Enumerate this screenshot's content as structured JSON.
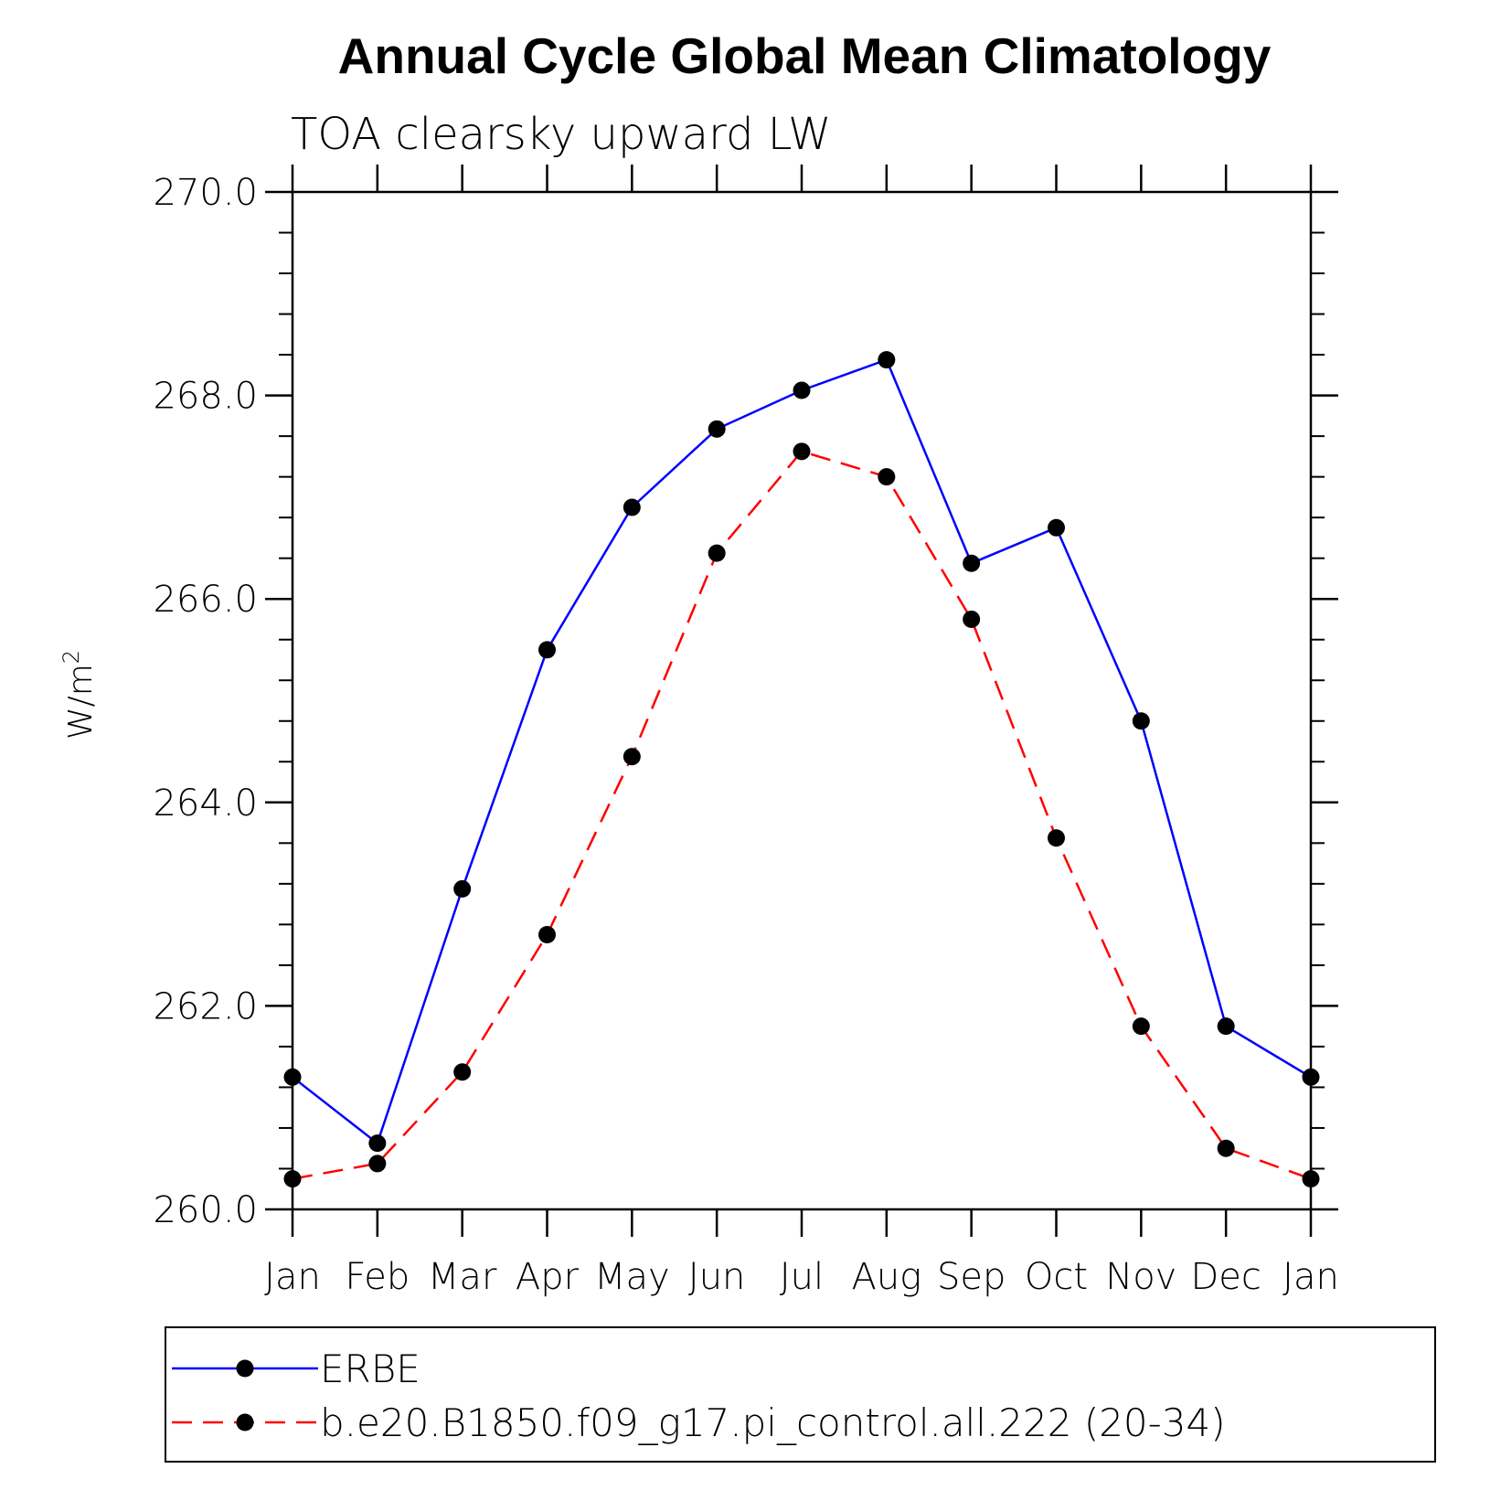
{
  "chart_data": {
    "type": "line",
    "title": "Annual Cycle Global Mean Climatology",
    "subtitle": "TOA clearsky upward LW",
    "xlabel": "",
    "ylabel": "W/m",
    "ylabel_superscript": "2",
    "categories": [
      "Jan",
      "Feb",
      "Mar",
      "Apr",
      "May",
      "Jun",
      "Jul",
      "Aug",
      "Sep",
      "Oct",
      "Nov",
      "Dec",
      "Jan"
    ],
    "ylim": [
      260.0,
      270.0
    ],
    "yticks": [
      "260.0",
      "262.0",
      "264.0",
      "266.0",
      "268.0",
      "270.0"
    ],
    "grid": false,
    "legend_position": "bottom",
    "series": [
      {
        "name": "ERBE",
        "color": "#0000ff",
        "dash": "solid",
        "marker": "filled-circle",
        "values": [
          261.3,
          260.65,
          263.15,
          265.5,
          266.9,
          267.67,
          268.05,
          268.35,
          266.35,
          266.7,
          264.8,
          261.8,
          261.3
        ]
      },
      {
        "name": "b.e20.B1850.f09_g17.pi_control.all.222 (20-34)",
        "color": "#ff0000",
        "dash": "dashed",
        "marker": "filled-circle",
        "values": [
          260.3,
          260.45,
          261.35,
          262.7,
          264.45,
          266.45,
          267.45,
          267.2,
          265.8,
          263.65,
          261.8,
          260.6,
          260.3
        ]
      }
    ]
  }
}
